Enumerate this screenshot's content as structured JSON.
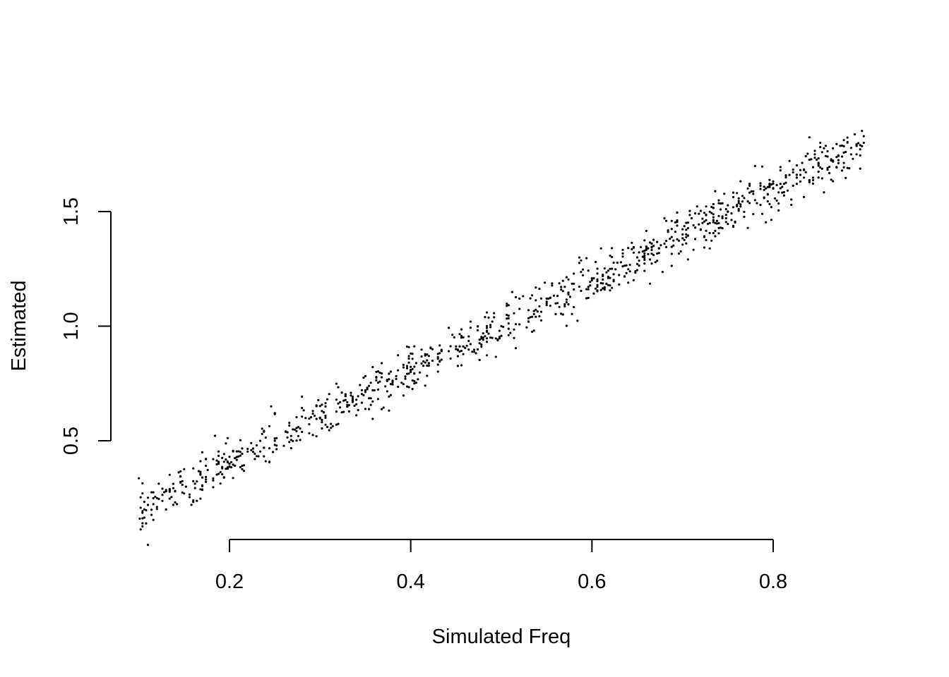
{
  "chart_data": {
    "type": "scatter",
    "title": "",
    "xlabel": "Simulated Freq",
    "ylabel": "Estimated",
    "x_ticks": [
      0.2,
      0.4,
      0.6,
      0.8
    ],
    "x_tick_labels": [
      "0.2",
      "0.4",
      "0.6",
      "0.8"
    ],
    "y_ticks": [
      0.5,
      1.0,
      1.5
    ],
    "y_tick_labels": [
      "0.5",
      "1.0",
      "1.5"
    ],
    "xlim": [
      0.1,
      0.9
    ],
    "ylim": [
      0.15,
      1.87
    ],
    "grid": false,
    "legend": "none",
    "point_color": "#000000",
    "point_count": 1000,
    "trend": {
      "slope": 2.0,
      "intercept": 0.0
    },
    "noise_sd": 0.05,
    "points_sample": [
      [
        0.101,
        0.16
      ],
      [
        0.104,
        0.14
      ],
      [
        0.11,
        0.22
      ],
      [
        0.12,
        0.25
      ],
      [
        0.13,
        0.2
      ],
      [
        0.15,
        0.27
      ],
      [
        0.17,
        0.34
      ],
      [
        0.2,
        0.4
      ],
      [
        0.23,
        0.48
      ],
      [
        0.25,
        0.5
      ],
      [
        0.27,
        0.55
      ],
      [
        0.3,
        0.6
      ],
      [
        0.33,
        0.65
      ],
      [
        0.36,
        0.72
      ],
      [
        0.4,
        0.8
      ],
      [
        0.42,
        0.87
      ],
      [
        0.45,
        0.9
      ],
      [
        0.48,
        0.95
      ],
      [
        0.5,
        1.0
      ],
      [
        0.53,
        1.07
      ],
      [
        0.55,
        1.1
      ],
      [
        0.58,
        1.16
      ],
      [
        0.6,
        1.2
      ],
      [
        0.62,
        1.25
      ],
      [
        0.65,
        1.3
      ],
      [
        0.68,
        1.36
      ],
      [
        0.7,
        1.4
      ],
      [
        0.73,
        1.45
      ],
      [
        0.75,
        1.5
      ],
      [
        0.78,
        1.55
      ],
      [
        0.8,
        1.6
      ],
      [
        0.83,
        1.66
      ],
      [
        0.85,
        1.7
      ],
      [
        0.88,
        1.76
      ],
      [
        0.9,
        1.8
      ]
    ]
  }
}
